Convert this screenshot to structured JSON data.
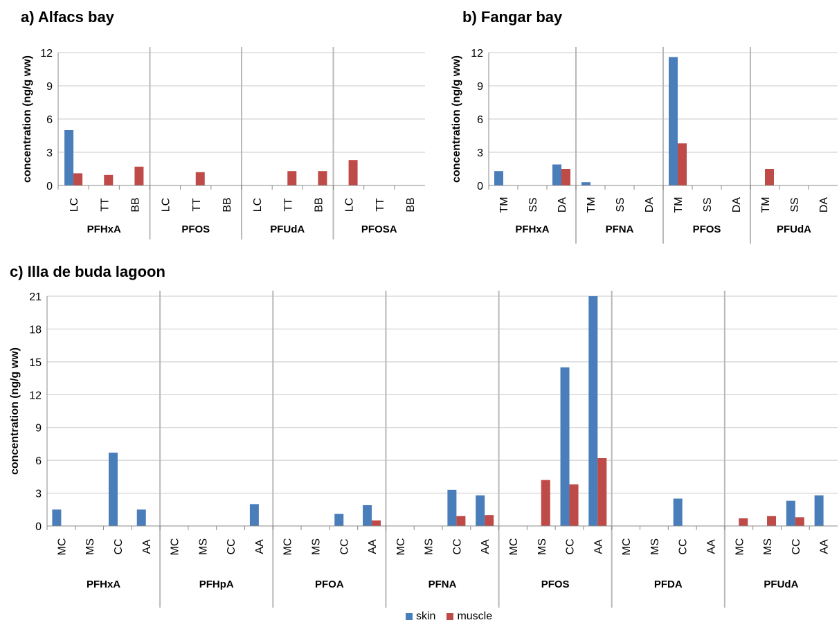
{
  "colors": {
    "skin": "#4a7ebb",
    "muscle": "#be4b48",
    "grid": "#c8c8c8",
    "divider": "#b8b8b8",
    "axis": "#888888"
  },
  "legend": [
    {
      "key": "skin",
      "label": "skin"
    },
    {
      "key": "muscle",
      "label": "muscle"
    }
  ],
  "chart_data": [
    {
      "type": "bar",
      "title": "a) Alfacs bay",
      "ylabel": "concentration (ng/g ww)",
      "ylim": [
        0,
        12
      ],
      "yticks": [
        0,
        3,
        6,
        9,
        12
      ],
      "grid": true,
      "groups": [
        {
          "name": "PFHxA",
          "categories": [
            "LC",
            "TT",
            "BB"
          ],
          "skin": [
            5.0,
            0,
            0
          ],
          "muscle": [
            1.1,
            0.95,
            1.7
          ]
        },
        {
          "name": "PFOS",
          "categories": [
            "LC",
            "TT",
            "BB"
          ],
          "skin": [
            0,
            0,
            0
          ],
          "muscle": [
            0,
            1.2,
            0
          ]
        },
        {
          "name": "PFUdA",
          "categories": [
            "LC",
            "TT",
            "BB"
          ],
          "skin": [
            0,
            0,
            0
          ],
          "muscle": [
            0,
            1.3,
            1.3
          ]
        },
        {
          "name": "PFOSA",
          "categories": [
            "LC",
            "TT",
            "BB"
          ],
          "skin": [
            0,
            0,
            0
          ],
          "muscle": [
            2.3,
            0,
            0
          ]
        }
      ]
    },
    {
      "type": "bar",
      "title": "b) Fangar bay",
      "ylabel": "concentration (ng/g ww)",
      "ylim": [
        0,
        12
      ],
      "yticks": [
        0,
        3,
        6,
        9,
        12
      ],
      "grid": true,
      "groups": [
        {
          "name": "PFHxA",
          "categories": [
            "TM",
            "SS",
            "DA"
          ],
          "skin": [
            1.3,
            0,
            1.9
          ],
          "muscle": [
            0,
            0,
            1.5
          ]
        },
        {
          "name": "PFNA",
          "categories": [
            "TM",
            "SS",
            "DA"
          ],
          "skin": [
            0.3,
            0,
            0
          ],
          "muscle": [
            0,
            0,
            0
          ]
        },
        {
          "name": "PFOS",
          "categories": [
            "TM",
            "SS",
            "DA"
          ],
          "skin": [
            11.6,
            0,
            0
          ],
          "muscle": [
            3.8,
            0,
            0
          ]
        },
        {
          "name": "PFUdA",
          "categories": [
            "TM",
            "SS",
            "DA"
          ],
          "skin": [
            0,
            0,
            0
          ],
          "muscle": [
            1.5,
            0,
            0
          ]
        }
      ]
    },
    {
      "type": "bar",
      "title": "c) Illa de buda lagoon",
      "ylabel": "concentration (ng/g ww)",
      "ylim": [
        0,
        21
      ],
      "yticks": [
        0,
        3,
        6,
        9,
        12,
        15,
        18,
        21
      ],
      "grid": true,
      "groups": [
        {
          "name": "PFHxA",
          "categories": [
            "MC",
            "MS",
            "CC",
            "AA"
          ],
          "skin": [
            1.5,
            0,
            6.7,
            1.5
          ],
          "muscle": [
            0,
            0,
            0,
            0
          ]
        },
        {
          "name": "PFHpA",
          "categories": [
            "MC",
            "MS",
            "CC",
            "AA"
          ],
          "skin": [
            0,
            0,
            0,
            2.0
          ],
          "muscle": [
            0,
            0,
            0,
            0
          ]
        },
        {
          "name": "PFOA",
          "categories": [
            "MC",
            "MS",
            "CC",
            "AA"
          ],
          "skin": [
            0,
            0,
            1.1,
            1.9
          ],
          "muscle": [
            0,
            0,
            0,
            0.5
          ]
        },
        {
          "name": "PFNA",
          "categories": [
            "MC",
            "MS",
            "CC",
            "AA"
          ],
          "skin": [
            0,
            0,
            3.3,
            2.8
          ],
          "muscle": [
            0,
            0,
            0.9,
            1.0
          ]
        },
        {
          "name": "PFOS",
          "categories": [
            "MC",
            "MS",
            "CC",
            "AA"
          ],
          "skin": [
            0,
            0,
            14.5,
            21.0
          ],
          "muscle": [
            0,
            4.2,
            3.8,
            6.2
          ]
        },
        {
          "name": "PFDA",
          "categories": [
            "MC",
            "MS",
            "CC",
            "AA"
          ],
          "skin": [
            0,
            0,
            2.5,
            0
          ],
          "muscle": [
            0,
            0,
            0,
            0
          ]
        },
        {
          "name": "PFUdA",
          "categories": [
            "MC",
            "MS",
            "CC",
            "AA"
          ],
          "skin": [
            0,
            0,
            2.3,
            2.8
          ],
          "muscle": [
            0.7,
            0.9,
            0.8,
            0
          ]
        }
      ]
    }
  ]
}
